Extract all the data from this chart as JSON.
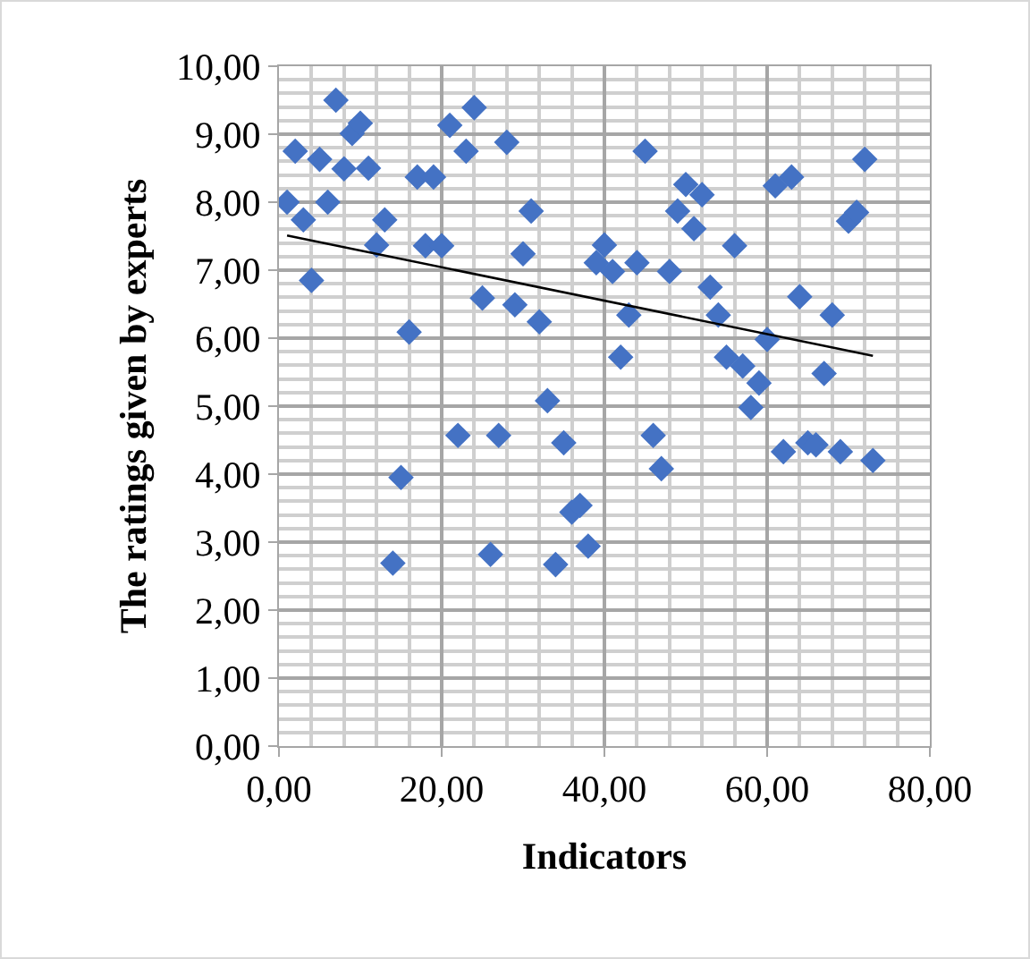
{
  "chart_data": {
    "type": "scatter",
    "xlabel": "Indicators",
    "ylabel": "The ratings given by experts",
    "xlim": [
      0,
      80
    ],
    "ylim": [
      0,
      10
    ],
    "xticks": [
      {
        "value": 0,
        "label": "0,00"
      },
      {
        "value": 20,
        "label": "20,00"
      },
      {
        "value": 40,
        "label": "40,00"
      },
      {
        "value": 60,
        "label": "60,00"
      },
      {
        "value": 80,
        "label": "80,00"
      }
    ],
    "yticks": [
      {
        "value": 0,
        "label": "0,00"
      },
      {
        "value": 1,
        "label": "1,00"
      },
      {
        "value": 2,
        "label": "2,00"
      },
      {
        "value": 3,
        "label": "3,00"
      },
      {
        "value": 4,
        "label": "4,00"
      },
      {
        "value": 5,
        "label": "5,00"
      },
      {
        "value": 6,
        "label": "6,00"
      },
      {
        "value": 7,
        "label": "7,00"
      },
      {
        "value": 8,
        "label": "8,00"
      },
      {
        "value": 9,
        "label": "9,00"
      },
      {
        "value": 10,
        "label": "10,00"
      }
    ],
    "grid": true,
    "marker": "diamond",
    "series": [
      {
        "color": "#4472c4",
        "x": [
          1,
          2,
          3,
          4,
          5,
          6,
          7,
          8,
          9,
          10,
          11,
          12,
          13,
          14,
          15,
          16,
          17,
          18,
          19,
          20,
          21,
          22,
          23,
          24,
          25,
          26,
          27,
          28,
          29,
          30,
          31,
          32,
          33,
          34,
          35,
          36,
          37,
          38,
          39,
          40,
          41,
          42,
          43,
          44,
          45,
          46,
          47,
          48,
          49,
          50,
          51,
          52,
          53,
          54,
          55,
          56,
          57,
          58,
          59,
          60,
          61,
          62,
          63,
          64,
          65,
          66,
          67,
          68,
          69,
          70,
          71,
          72,
          73
        ],
        "values": [
          8.0,
          8.75,
          7.74,
          6.85,
          8.63,
          8.0,
          9.5,
          8.49,
          9.01,
          9.16,
          8.5,
          7.37,
          7.74,
          2.69,
          3.95,
          6.09,
          8.37,
          7.36,
          8.37,
          7.36,
          9.13,
          4.57,
          8.75,
          9.39,
          6.59,
          2.82,
          4.57,
          8.88,
          6.49,
          7.24,
          7.87,
          6.24,
          5.08,
          2.67,
          4.46,
          3.44,
          3.54,
          2.94,
          7.11,
          7.37,
          6.98,
          5.72,
          6.34,
          7.11,
          8.75,
          4.57,
          4.08,
          6.98,
          7.87,
          8.26,
          7.61,
          8.11,
          6.75,
          6.34,
          5.72,
          7.36,
          5.59,
          4.98,
          5.34,
          5.98,
          8.24,
          4.33,
          8.37,
          6.61,
          4.46,
          4.43,
          5.48,
          6.34,
          4.33,
          7.72,
          7.85,
          8.63,
          4.2
        ]
      },
      {
        "type": "line",
        "color": "#000000",
        "marker": "none",
        "line_style": "solid",
        "x": [
          1,
          73
        ],
        "values": [
          7.51,
          5.74
        ]
      }
    ]
  }
}
